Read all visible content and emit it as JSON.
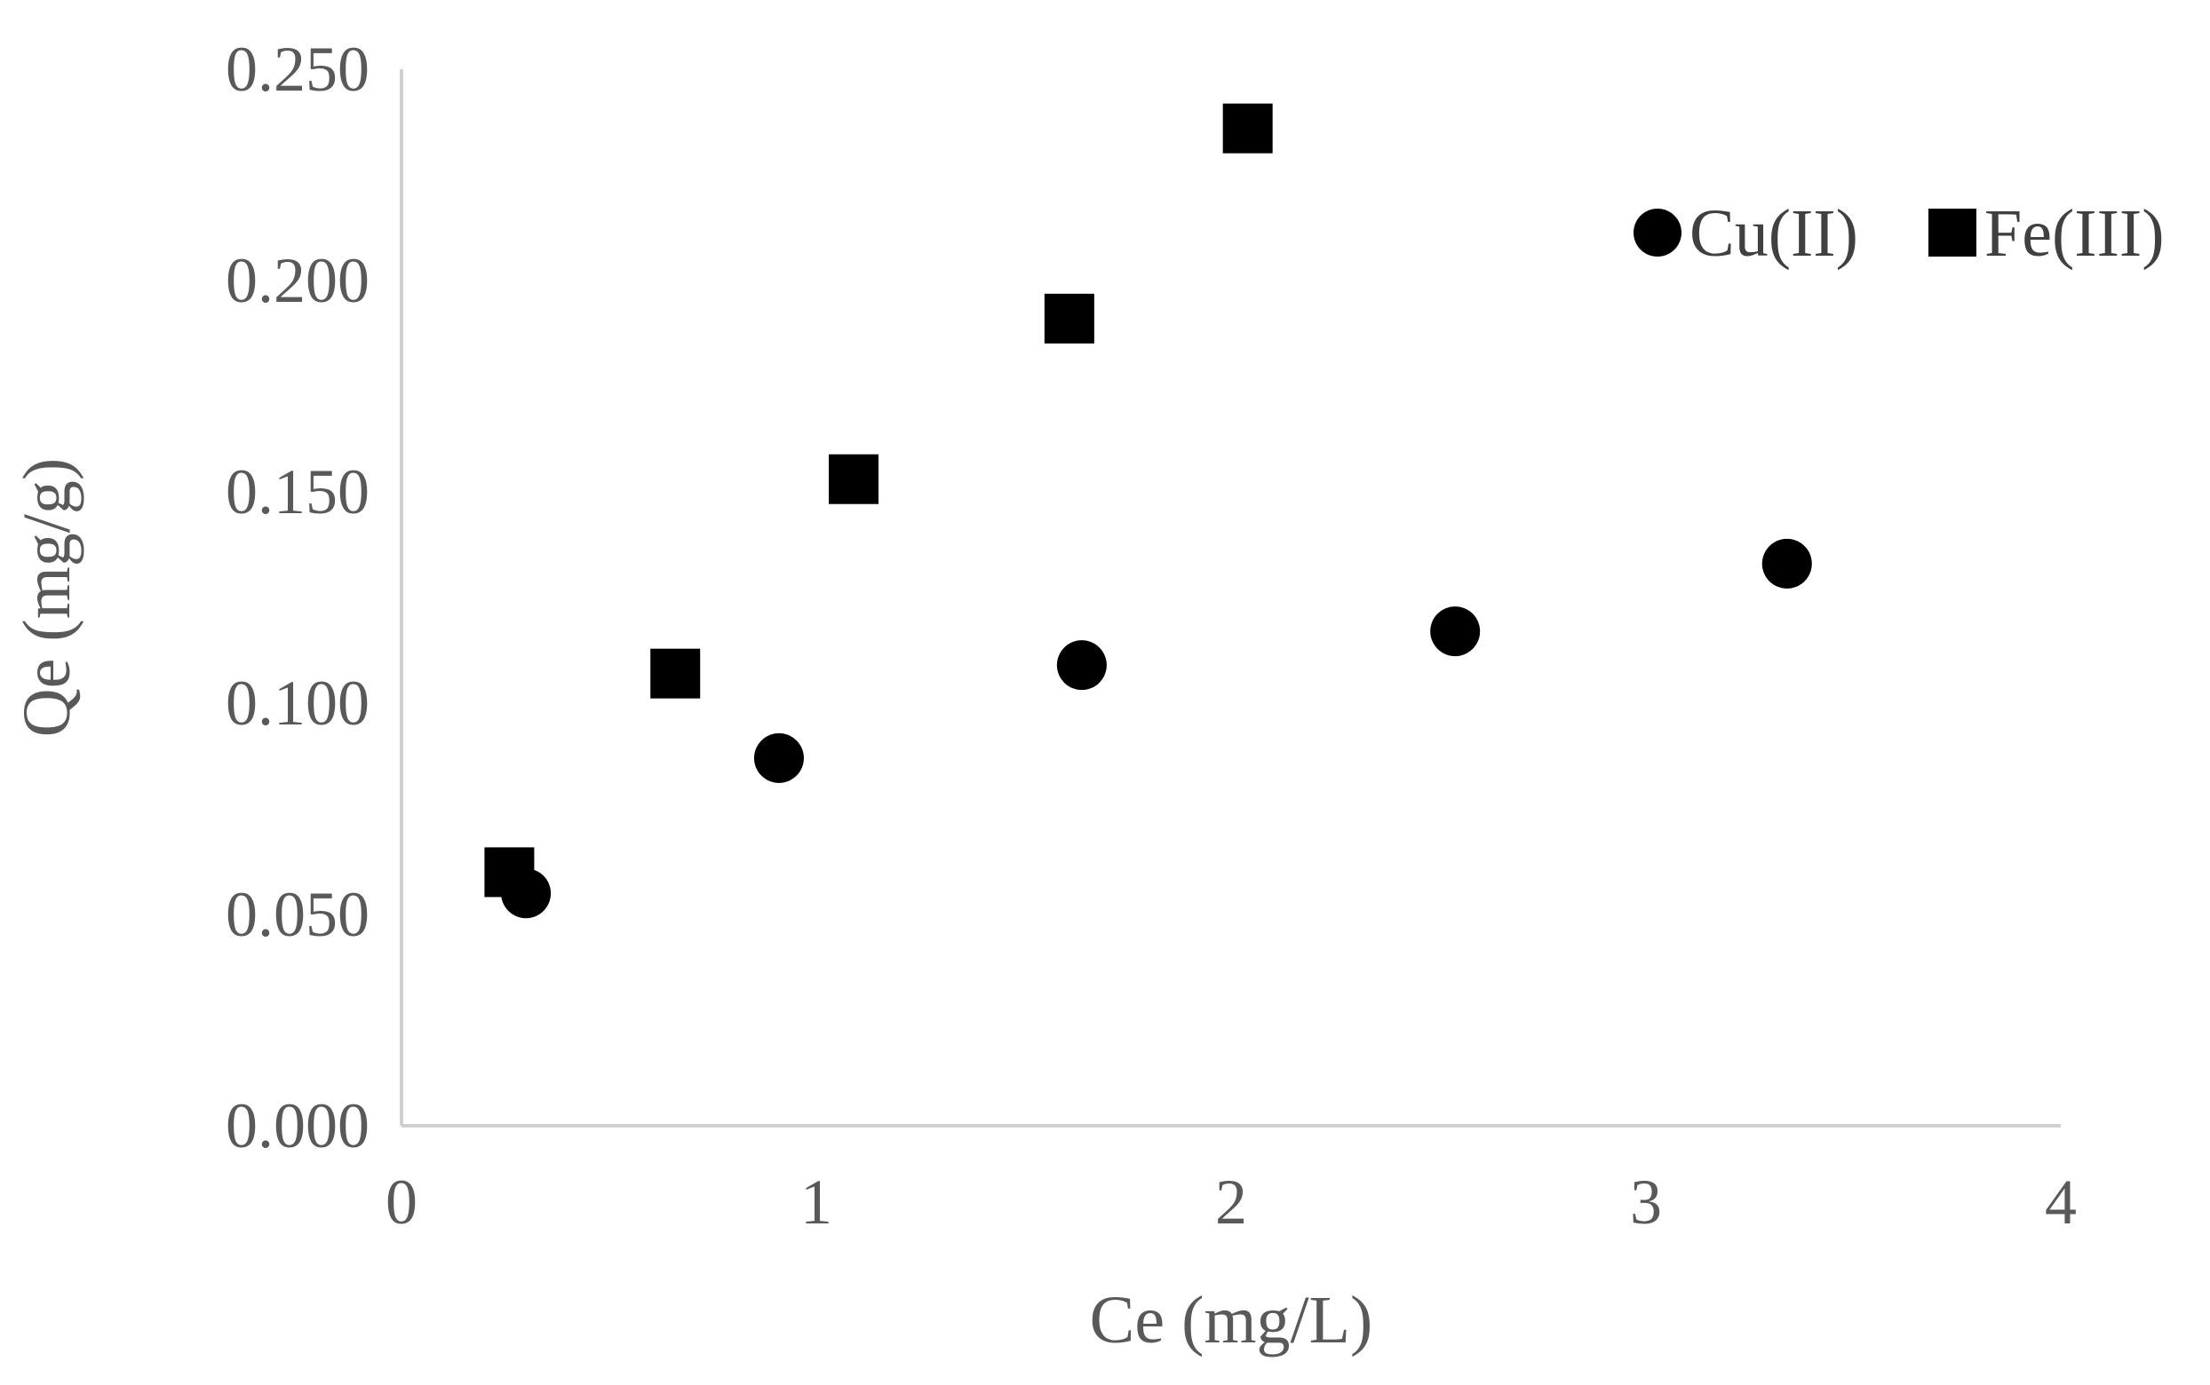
{
  "chart_data": {
    "type": "scatter",
    "title": "",
    "xlabel": "Ce (mg/L)",
    "ylabel": "Qe (mg/g)",
    "xlim": [
      0,
      4
    ],
    "ylim": [
      0,
      0.25
    ],
    "x_ticks": [
      "0",
      "1",
      "2",
      "3",
      "4"
    ],
    "y_ticks": [
      "0.000",
      "0.050",
      "0.100",
      "0.150",
      "0.200",
      "0.250"
    ],
    "grid": false,
    "legend_position": "top-right",
    "series": [
      {
        "name": "Cu(II)",
        "marker": "circle",
        "color": "#000000",
        "x": [
          0.3,
          0.91,
          1.64,
          2.54,
          3.34
        ],
        "y": [
          0.055,
          0.087,
          0.109,
          0.117,
          0.133
        ]
      },
      {
        "name": "Fe(III)",
        "marker": "square",
        "color": "#000000",
        "x": [
          0.26,
          0.66,
          1.09,
          1.61,
          2.04
        ],
        "y": [
          0.06,
          0.107,
          0.153,
          0.191,
          0.236
        ]
      }
    ]
  }
}
